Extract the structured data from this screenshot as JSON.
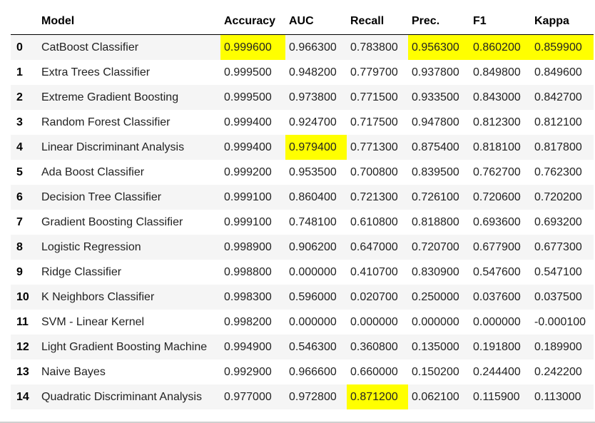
{
  "table": {
    "columns": [
      "",
      "Model",
      "Accuracy",
      "AUC",
      "Recall",
      "Prec.",
      "F1",
      "Kappa"
    ],
    "highlight_color": "#ffff00",
    "rows": [
      {
        "index": "0",
        "model": "CatBoost Classifier",
        "accuracy": "0.999600",
        "auc": "0.966300",
        "recall": "0.783800",
        "prec": "0.956300",
        "f1": "0.860200",
        "kappa": "0.859900",
        "highlight": [
          "accuracy",
          "prec",
          "f1",
          "kappa"
        ]
      },
      {
        "index": "1",
        "model": "Extra Trees Classifier",
        "accuracy": "0.999500",
        "auc": "0.948200",
        "recall": "0.779700",
        "prec": "0.937800",
        "f1": "0.849800",
        "kappa": "0.849600",
        "highlight": []
      },
      {
        "index": "2",
        "model": "Extreme Gradient Boosting",
        "accuracy": "0.999500",
        "auc": "0.973800",
        "recall": "0.771500",
        "prec": "0.933500",
        "f1": "0.843000",
        "kappa": "0.842700",
        "highlight": []
      },
      {
        "index": "3",
        "model": "Random Forest Classifier",
        "accuracy": "0.999400",
        "auc": "0.924700",
        "recall": "0.717500",
        "prec": "0.947800",
        "f1": "0.812300",
        "kappa": "0.812100",
        "highlight": []
      },
      {
        "index": "4",
        "model": "Linear Discriminant Analysis",
        "accuracy": "0.999400",
        "auc": "0.979400",
        "recall": "0.771300",
        "prec": "0.875400",
        "f1": "0.818100",
        "kappa": "0.817800",
        "highlight": [
          "auc"
        ]
      },
      {
        "index": "5",
        "model": "Ada Boost Classifier",
        "accuracy": "0.999200",
        "auc": "0.953500",
        "recall": "0.700800",
        "prec": "0.839500",
        "f1": "0.762700",
        "kappa": "0.762300",
        "highlight": []
      },
      {
        "index": "6",
        "model": "Decision Tree Classifier",
        "accuracy": "0.999100",
        "auc": "0.860400",
        "recall": "0.721300",
        "prec": "0.726100",
        "f1": "0.720600",
        "kappa": "0.720200",
        "highlight": []
      },
      {
        "index": "7",
        "model": "Gradient Boosting Classifier",
        "accuracy": "0.999100",
        "auc": "0.748100",
        "recall": "0.610800",
        "prec": "0.818800",
        "f1": "0.693600",
        "kappa": "0.693200",
        "highlight": []
      },
      {
        "index": "8",
        "model": "Logistic Regression",
        "accuracy": "0.998900",
        "auc": "0.906200",
        "recall": "0.647000",
        "prec": "0.720700",
        "f1": "0.677900",
        "kappa": "0.677300",
        "highlight": []
      },
      {
        "index": "9",
        "model": "Ridge Classifier",
        "accuracy": "0.998800",
        "auc": "0.000000",
        "recall": "0.410700",
        "prec": "0.830900",
        "f1": "0.547600",
        "kappa": "0.547100",
        "highlight": []
      },
      {
        "index": "10",
        "model": "K Neighbors Classifier",
        "accuracy": "0.998300",
        "auc": "0.596000",
        "recall": "0.020700",
        "prec": "0.250000",
        "f1": "0.037600",
        "kappa": "0.037500",
        "highlight": []
      },
      {
        "index": "11",
        "model": "SVM - Linear Kernel",
        "accuracy": "0.998200",
        "auc": "0.000000",
        "recall": "0.000000",
        "prec": "0.000000",
        "f1": "0.000000",
        "kappa": "-0.000100",
        "highlight": []
      },
      {
        "index": "12",
        "model": "Light Gradient Boosting Machine",
        "accuracy": "0.994900",
        "auc": "0.546300",
        "recall": "0.360800",
        "prec": "0.135000",
        "f1": "0.191800",
        "kappa": "0.189900",
        "highlight": []
      },
      {
        "index": "13",
        "model": "Naive Bayes",
        "accuracy": "0.992900",
        "auc": "0.966600",
        "recall": "0.660000",
        "prec": "0.150200",
        "f1": "0.244400",
        "kappa": "0.242200",
        "highlight": []
      },
      {
        "index": "14",
        "model": "Quadratic Discriminant Analysis",
        "accuracy": "0.977000",
        "auc": "0.972800",
        "recall": "0.871200",
        "prec": "0.062100",
        "f1": "0.115900",
        "kappa": "0.113000",
        "highlight": [
          "recall"
        ]
      }
    ]
  }
}
